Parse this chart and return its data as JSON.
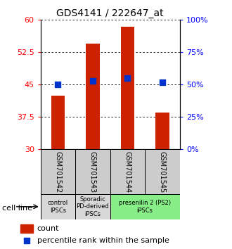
{
  "title": "GDS4141 / 222647_at",
  "samples": [
    "GSM701542",
    "GSM701543",
    "GSM701544",
    "GSM701545"
  ],
  "counts": [
    42.5,
    54.5,
    58.5,
    38.5
  ],
  "percentile_pct": [
    50,
    53,
    55,
    52
  ],
  "ymin": 30,
  "ymax": 60,
  "yticks": [
    30,
    37.5,
    45,
    52.5,
    60
  ],
  "yticks_right": [
    0,
    25,
    50,
    75,
    100
  ],
  "bar_color": "#cc2200",
  "dot_color": "#0033cc",
  "cell_line_groups": [
    {
      "label": "control\nIPSCs",
      "start": 0,
      "end": 1,
      "color": "#d8d8d8"
    },
    {
      "label": "Sporadic\nPD-derived\niPSCs",
      "start": 1,
      "end": 2,
      "color": "#d8d8d8"
    },
    {
      "label": "presenilin 2 (PS2)\niPSCs",
      "start": 2,
      "end": 4,
      "color": "#88ee88"
    }
  ],
  "legend_count_label": "count",
  "legend_pct_label": "percentile rank within the sample",
  "cell_line_label": "cell line",
  "bar_width": 0.4,
  "dot_size": 28
}
